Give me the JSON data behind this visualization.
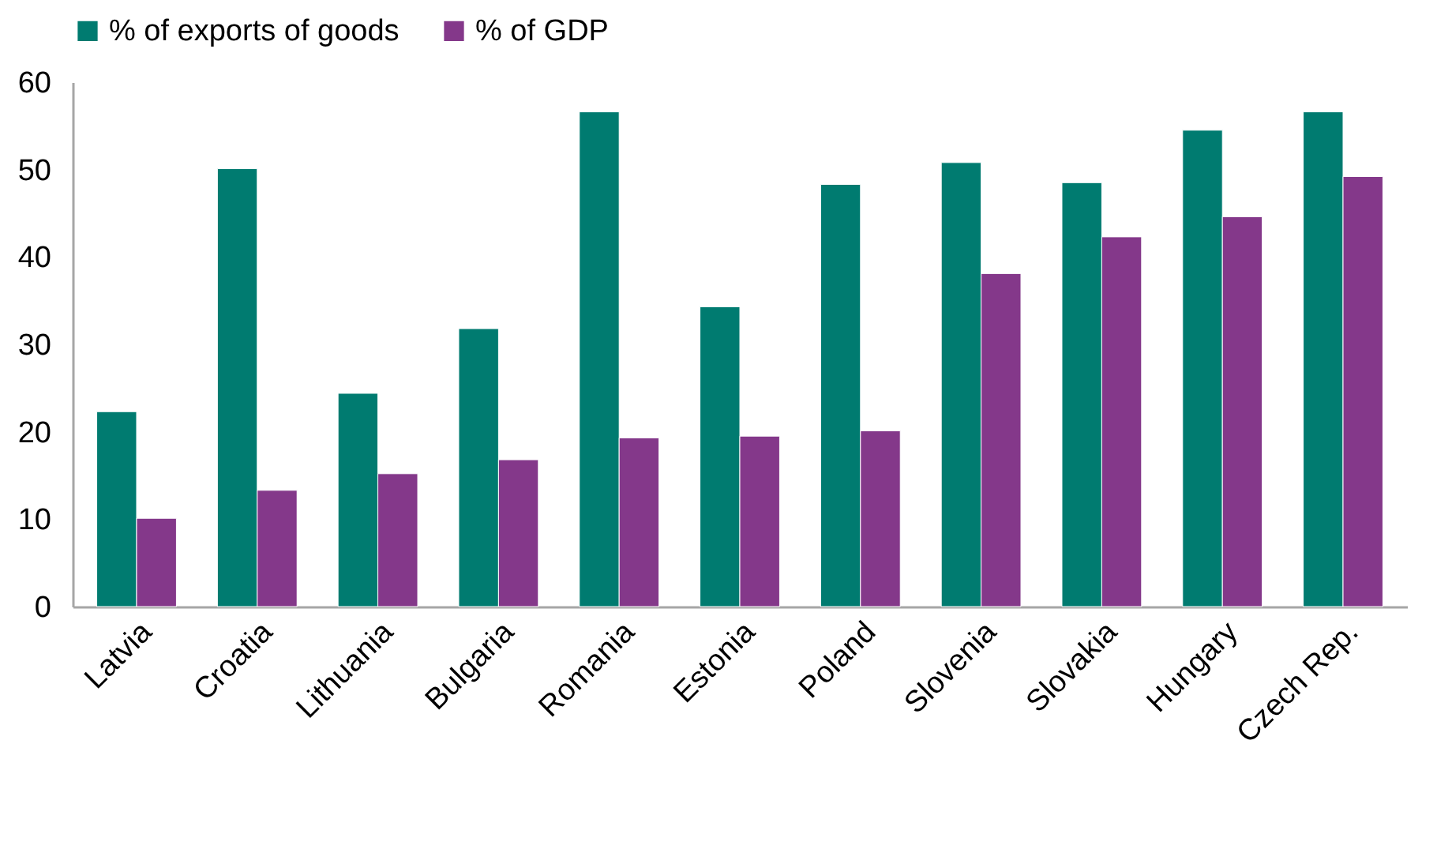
{
  "chart_data": {
    "type": "bar",
    "categories": [
      "Latvia",
      "Croatia",
      "Lithuania",
      "Bulgaria",
      "Romania",
      "Estonia",
      "Poland",
      "Slovenia",
      "Slovakia",
      "Hungary",
      "Czech Rep."
    ],
    "series": [
      {
        "name": "% of exports of goods",
        "color": "#007b70",
        "values": [
          22.3,
          50.1,
          24.4,
          31.8,
          56.6,
          34.3,
          48.3,
          50.8,
          48.5,
          54.5,
          56.6
        ]
      },
      {
        "name": "% of GDP",
        "color": "#84388a",
        "values": [
          10.1,
          13.3,
          15.2,
          16.8,
          19.3,
          19.5,
          20.1,
          38.1,
          42.3,
          44.6,
          49.2
        ]
      }
    ],
    "ylim": [
      0,
      60
    ],
    "yticks": [
      0,
      10,
      20,
      30,
      40,
      50,
      60
    ],
    "grid": false,
    "legend": "top"
  }
}
